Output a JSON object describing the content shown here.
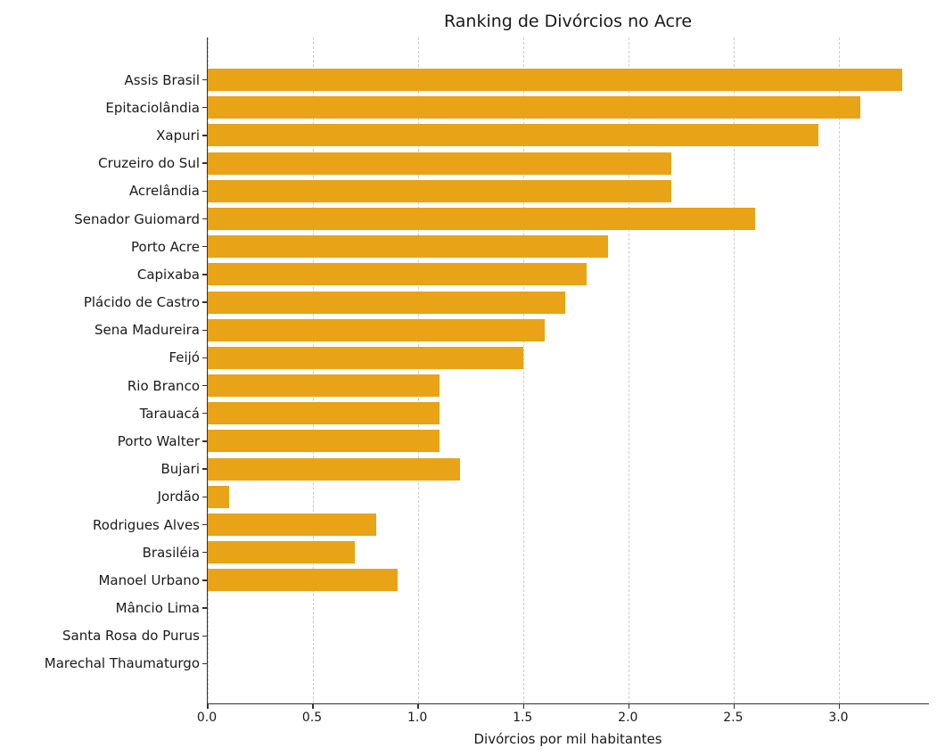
{
  "colors": {
    "bar": "#E8A317",
    "grid": "#cccccc",
    "axis": "#333333",
    "text": "#1a1a1a"
  },
  "chart_data": {
    "type": "bar",
    "orientation": "horizontal",
    "title": "Ranking de Divórcios no Acre",
    "xlabel": "Divórcios por mil habitantes",
    "ylabel": "",
    "categories": [
      "Assis Brasil",
      "Epitaciolândia",
      "Xapuri",
      "Cruzeiro do Sul",
      "Acrelândia",
      "Senador Guiomard",
      "Porto Acre",
      "Capixaba",
      "Plácido de Castro",
      "Sena Madureira",
      "Feijó",
      "Rio Branco",
      "Tarauacá",
      "Porto Walter",
      "Bujari",
      "Jordão",
      "Rodrigues Alves",
      "Brasiléia",
      "Manoel Urbano",
      "Mâncio Lima",
      "Santa Rosa do Purus",
      "Marechal Thaumaturgo"
    ],
    "values": [
      3.3,
      3.1,
      2.9,
      2.2,
      2.2,
      2.6,
      1.9,
      1.8,
      1.7,
      1.6,
      1.5,
      1.1,
      1.1,
      1.1,
      1.2,
      0.1,
      0.8,
      0.7,
      0.9,
      0.0,
      0.0,
      0.0
    ],
    "xticks": [
      0.0,
      0.5,
      1.0,
      1.5,
      2.0,
      2.5,
      3.0
    ],
    "xtick_labels": [
      "0.0",
      "0.5",
      "1.0",
      "1.5",
      "2.0",
      "2.5",
      "3.0"
    ],
    "xlim": [
      0,
      3.43
    ],
    "grid": "dashed-vertical",
    "legend": "none"
  }
}
